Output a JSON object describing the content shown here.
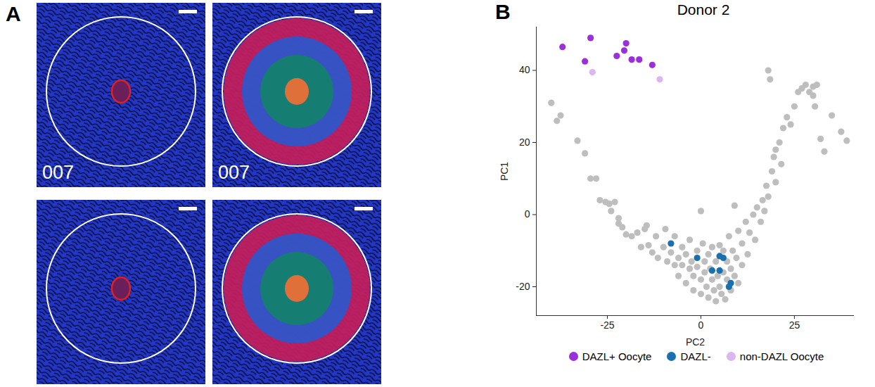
{
  "panel_a": {
    "letter": "A",
    "image_labels": [
      "007",
      "007",
      null,
      null
    ]
  },
  "chart_data": {
    "letter": "B",
    "type": "scatter",
    "title": "Donor 2",
    "x_label": "PC2",
    "y_label": "PC1",
    "xlim": [
      -44,
      41
    ],
    "xticks": [
      -25,
      0,
      25
    ],
    "ylim": [
      -28,
      52
    ],
    "yticks": [
      -20,
      0,
      20,
      40
    ],
    "legend": "bottom",
    "series": [
      {
        "color": "#bebebe",
        "values": [
          [
            -40,
            31
          ],
          [
            -38.5,
            26
          ],
          [
            -37.5,
            27.5
          ],
          [
            -33,
            20.5
          ],
          [
            -31,
            17
          ],
          [
            -29.5,
            10
          ],
          [
            -28,
            10
          ],
          [
            -27,
            4
          ],
          [
            -25.5,
            3.5
          ],
          [
            -24.5,
            3
          ],
          [
            -23,
            3.5
          ],
          [
            -24,
            1
          ],
          [
            -22,
            -1
          ],
          [
            -22,
            -2.5
          ],
          [
            -21,
            -3.5
          ],
          [
            -20,
            -5.5
          ],
          [
            -18.5,
            -6
          ],
          [
            -17,
            -5
          ],
          [
            -16,
            -9
          ],
          [
            -15,
            -4
          ],
          [
            -14.5,
            -3
          ],
          [
            -14,
            -8.5
          ],
          [
            -13,
            -10.5
          ],
          [
            -12,
            -6
          ],
          [
            -11.5,
            -12
          ],
          [
            -10,
            -9
          ],
          [
            -9.5,
            -4
          ],
          [
            -9,
            -13
          ],
          [
            -8,
            -10.5
          ],
          [
            -7,
            -14
          ],
          [
            -7,
            -6
          ],
          [
            -6,
            -12
          ],
          [
            -6,
            -17
          ],
          [
            -5,
            -9
          ],
          [
            -5,
            -14
          ],
          [
            -4,
            -11
          ],
          [
            -4,
            -19
          ],
          [
            -3,
            -7
          ],
          [
            -3,
            -15
          ],
          [
            -2.5,
            -13
          ],
          [
            -2,
            -17
          ],
          [
            -2,
            -21
          ],
          [
            -1,
            -10
          ],
          [
            -1,
            -14.5
          ],
          [
            0,
            -18
          ],
          [
            0,
            -22
          ],
          [
            0,
            1
          ],
          [
            0.5,
            -8
          ],
          [
            1,
            -13
          ],
          [
            1,
            -16
          ],
          [
            1.5,
            -20
          ],
          [
            2,
            -11
          ],
          [
            2,
            -23
          ],
          [
            2.5,
            -15
          ],
          [
            3,
            -18
          ],
          [
            3,
            -9
          ],
          [
            3.5,
            -21
          ],
          [
            4,
            -13
          ],
          [
            4,
            -24
          ],
          [
            4.5,
            -17
          ],
          [
            5,
            -8.5
          ],
          [
            5,
            -20
          ],
          [
            5.5,
            -22
          ],
          [
            6,
            -10
          ],
          [
            6,
            -16
          ],
          [
            6.5,
            -23.5
          ],
          [
            7,
            -13
          ],
          [
            7,
            -18
          ],
          [
            7.5,
            -6
          ],
          [
            8,
            -15
          ],
          [
            8,
            -21
          ],
          [
            8.5,
            -10
          ],
          [
            9,
            -17
          ],
          [
            9,
            2.5
          ],
          [
            9.5,
            -12
          ],
          [
            10,
            -4.5
          ],
          [
            10,
            -19
          ],
          [
            11,
            -8
          ],
          [
            11,
            -14
          ],
          [
            12,
            -2
          ],
          [
            12.5,
            -11
          ],
          [
            13,
            -5
          ],
          [
            14,
            0
          ],
          [
            14.5,
            -7
          ],
          [
            15,
            2
          ],
          [
            16,
            -2
          ],
          [
            16.5,
            4
          ],
          [
            17,
            1
          ],
          [
            17.5,
            8
          ],
          [
            18,
            5
          ],
          [
            19,
            12
          ],
          [
            19.5,
            16
          ],
          [
            20,
            9
          ],
          [
            20,
            18
          ],
          [
            21,
            20
          ],
          [
            21.5,
            14
          ],
          [
            22,
            24
          ],
          [
            23,
            27
          ],
          [
            24,
            25
          ],
          [
            25,
            30
          ],
          [
            26,
            34
          ],
          [
            27,
            35
          ],
          [
            28,
            36
          ],
          [
            29,
            34
          ],
          [
            30,
            35.5
          ],
          [
            30,
            33
          ],
          [
            30.5,
            30
          ],
          [
            31,
            36
          ],
          [
            32,
            21
          ],
          [
            33,
            17.5
          ],
          [
            35,
            27.5
          ],
          [
            37.5,
            23
          ],
          [
            39,
            20.5
          ],
          [
            18.5,
            37.5
          ],
          [
            18,
            40
          ]
        ]
      },
      {
        "name": "DAZL+ Oocyte",
        "color": "#9b2fdc",
        "values": [
          [
            -37,
            46.5
          ],
          [
            -29.5,
            49
          ],
          [
            -31,
            42.5
          ],
          [
            -22.5,
            44
          ],
          [
            -20,
            47.5
          ],
          [
            -20.5,
            45.5
          ],
          [
            -18.5,
            43
          ],
          [
            -16.5,
            43
          ],
          [
            -13,
            41.5
          ]
        ]
      },
      {
        "name": "DAZL-",
        "color": "#1a6fae",
        "values": [
          [
            -8,
            -8
          ],
          [
            -1,
            -12
          ],
          [
            5,
            -11.5
          ],
          [
            6,
            -12
          ],
          [
            3,
            -15.5
          ],
          [
            5,
            -15.5
          ],
          [
            8,
            -19
          ],
          [
            7.5,
            -20
          ]
        ]
      },
      {
        "name": "non-DAZL Oocyte",
        "color": "#dcb6ef",
        "values": [
          [
            -29,
            39.5
          ],
          [
            -11,
            37.5
          ]
        ]
      }
    ]
  }
}
